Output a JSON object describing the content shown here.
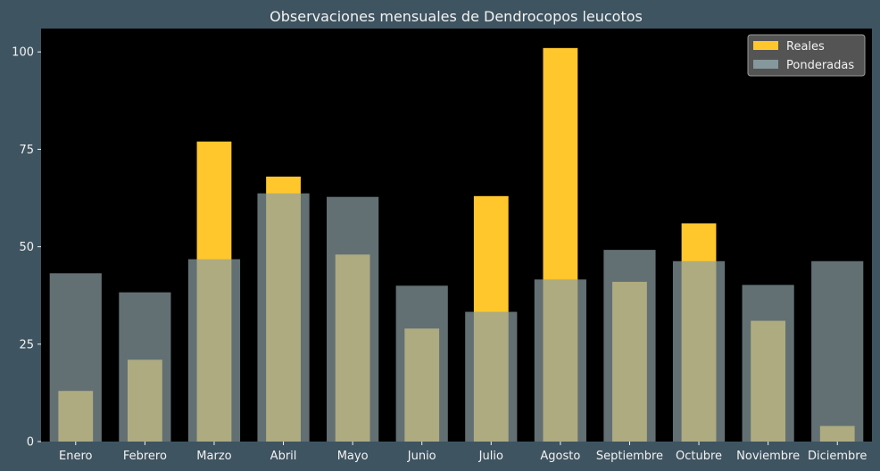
{
  "chart_data": {
    "type": "bar",
    "title": "Observaciones mensuales de Dendrocopos leucotos",
    "xlabel": "",
    "ylabel": "",
    "categories": [
      "Enero",
      "Febrero",
      "Marzo",
      "Abril",
      "Mayo",
      "Junio",
      "Julio",
      "Agosto",
      "Septiembre",
      "Octubre",
      "Noviembre",
      "Diciembre"
    ],
    "series": [
      {
        "name": "Reales",
        "values": [
          13,
          21,
          77,
          68,
          48,
          29,
          63,
          101,
          41,
          56,
          31,
          4
        ],
        "color": "#ffc72c"
      },
      {
        "name": "Ponderadas",
        "values": [
          43.2,
          38.3,
          46.8,
          63.7,
          62.8,
          40.0,
          33.3,
          41.6,
          49.2,
          46.3,
          40.2,
          46.3
        ],
        "color": "#8ba0a4",
        "opacity": 0.7
      }
    ],
    "ylim": [
      0,
      106
    ],
    "yticks": [
      0,
      25,
      50,
      75,
      100
    ],
    "grid": false,
    "legend": "top-right",
    "colors": {
      "background": "#3f5461",
      "plot_background": "#000000",
      "text": "#f2f2f2"
    }
  }
}
